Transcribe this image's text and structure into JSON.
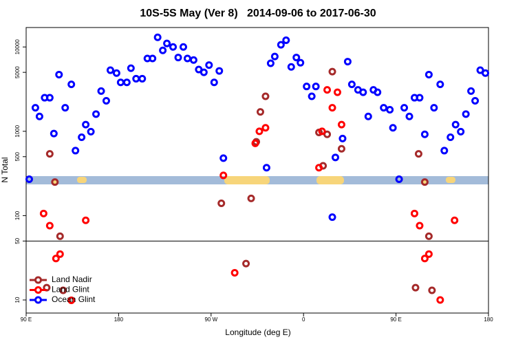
{
  "chart_data": {
    "type": "scatter",
    "title": "10S-5S May (Ver 8)   2014-09-06 to 2017-06-30",
    "xlabel": "Longitude (deg E)",
    "ylabel": "N Total",
    "xlim": [
      90,
      540
    ],
    "xticks": [
      {
        "value": 90,
        "label": "90 E"
      },
      180,
      {
        "value": 270,
        "label": "90 W"
      },
      {
        "value": 360,
        "label": "0"
      },
      {
        "value": 450,
        "label": "90 E"
      },
      {
        "value": 540,
        "label": "180"
      }
    ],
    "ylim": [
      7,
      17000
    ],
    "yscale": "log",
    "yticks": [
      10,
      50,
      100,
      500,
      1000,
      5000,
      10000
    ],
    "reference_line": 50,
    "legend": "lower left",
    "series": [
      {
        "name": "Land Nadir",
        "color": "#a52a2a",
        "x": [
          113,
          118,
          123,
          126,
          110,
          280,
          309,
          304,
          314,
          318,
          323,
          375,
          379,
          383,
          388,
          397,
          469,
          472,
          478,
          482,
          485
        ],
        "values": [
          540,
          250,
          57,
          13,
          14,
          140,
          160,
          27,
          750,
          1700,
          2600,
          970,
          390,
          920,
          5100,
          620,
          14,
          540,
          250,
          57,
          13
        ]
      },
      {
        "name": "Land Glint",
        "color": "#ff0000",
        "x": [
          107,
          113,
          119,
          123,
          134,
          148,
          282,
          293,
          313,
          317,
          323,
          375,
          378,
          383,
          388,
          393,
          397,
          468,
          473,
          478,
          482,
          493,
          507
        ],
        "values": [
          106,
          76,
          31,
          35,
          9.9,
          88,
          300,
          21,
          720,
          1000,
          1100,
          370,
          1000,
          3100,
          1900,
          2900,
          1200,
          106,
          76,
          31,
          35,
          10,
          88
        ]
      },
      {
        "name": "Ocean Glint",
        "color": "#0000ff",
        "x": [
          93,
          99,
          103,
          108,
          113,
          117,
          122,
          128,
          134,
          138,
          144,
          148,
          153,
          158,
          163,
          168,
          172,
          178,
          182,
          188,
          192,
          197,
          203,
          208,
          213,
          218,
          223,
          227,
          233,
          238,
          243,
          247,
          253,
          258,
          263,
          268,
          273,
          278,
          282,
          324,
          328,
          332,
          338,
          343,
          348,
          353,
          357,
          363,
          368,
          372,
          388,
          391,
          398,
          403,
          407,
          413,
          418,
          423,
          428,
          432,
          438,
          444,
          447,
          453,
          458,
          463,
          468,
          473,
          478,
          482,
          487,
          493,
          497,
          503,
          508,
          513,
          518,
          523,
          527,
          532,
          537
        ],
        "values": [
          270,
          1900,
          1500,
          2500,
          2500,
          940,
          4700,
          1900,
          3600,
          590,
          850,
          1200,
          990,
          1600,
          3000,
          2300,
          5300,
          4900,
          3800,
          3800,
          5600,
          4200,
          4200,
          7300,
          7300,
          13000,
          9100,
          11000,
          10000,
          7500,
          10000,
          7300,
          7000,
          5400,
          5000,
          6100,
          3800,
          5200,
          480,
          370,
          6400,
          7700,
          10600,
          12000,
          5800,
          7500,
          6500,
          3400,
          2600,
          3400,
          96,
          490,
          820,
          6700,
          3600,
          3100,
          2900,
          1500,
          3100,
          2900,
          1900,
          1800,
          1100,
          270,
          1900,
          1500,
          2500,
          2500,
          920,
          4700,
          1900,
          3600,
          590,
          850,
          1200,
          990,
          1600,
          3000,
          2300,
          5300,
          4900
        ]
      }
    ]
  }
}
